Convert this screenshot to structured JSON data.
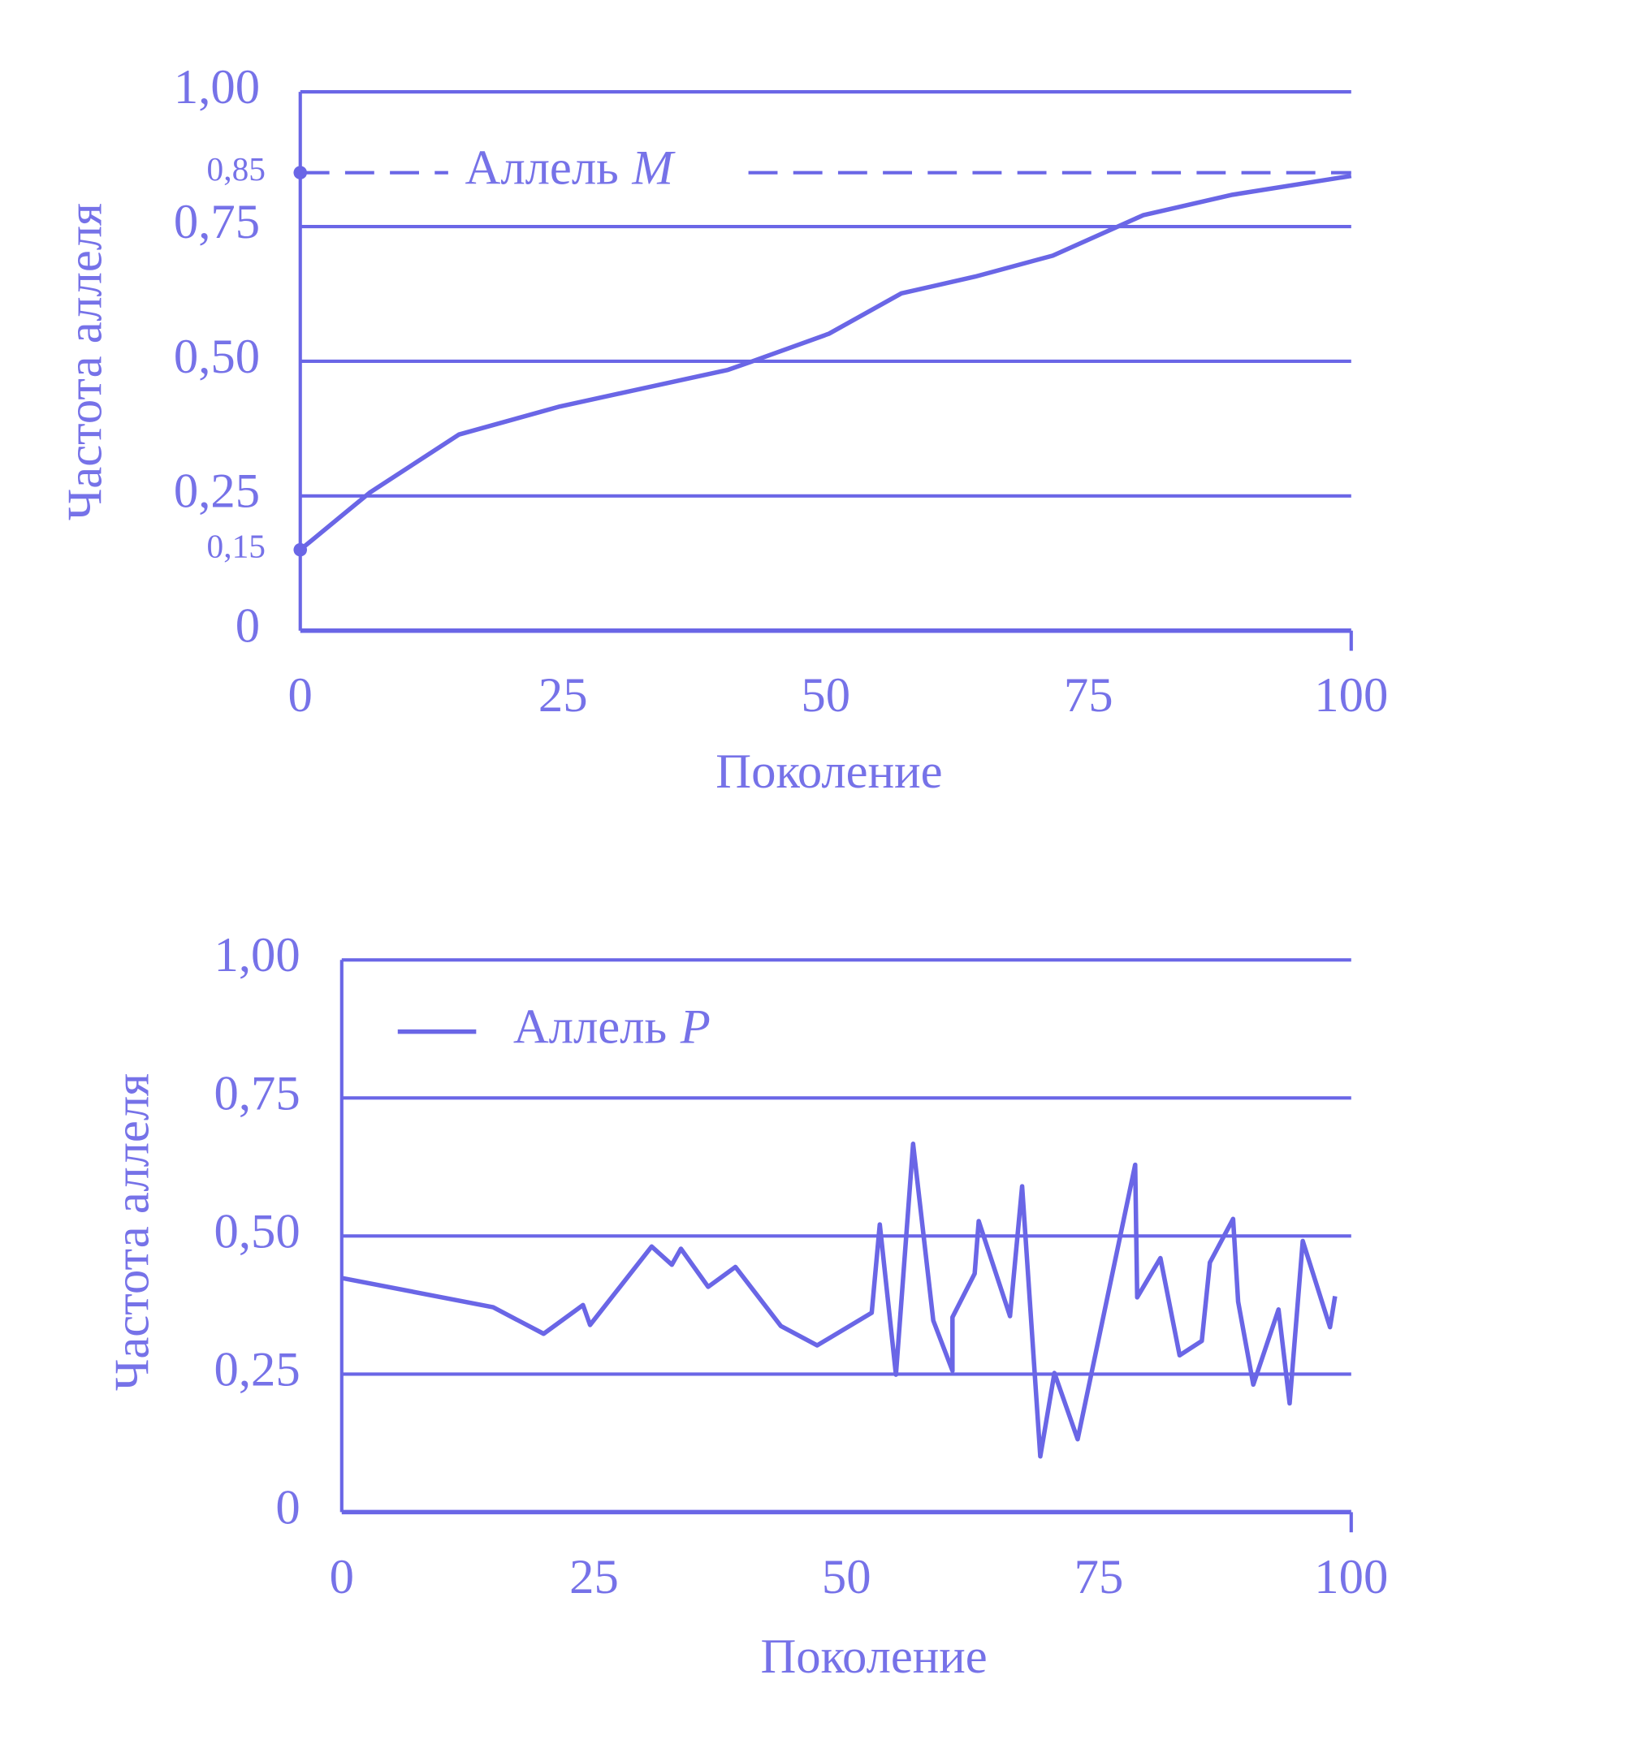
{
  "chart_data": [
    {
      "type": "line",
      "color": "#6a66e6",
      "grid": true,
      "x_label": "Поколение",
      "y_label": "Частота аллеля",
      "xlim": [
        0,
        100
      ],
      "xticks": [
        0,
        25,
        50,
        75,
        100
      ],
      "ylim": [
        0,
        1
      ],
      "yticks": [
        0,
        {
          "value": 0.25,
          "label": "0,25"
        },
        {
          "value": 0.5,
          "label": "0,50"
        },
        {
          "value": 0.75,
          "label": "0,75"
        },
        {
          "value": 1,
          "label": "1,00"
        }
      ],
      "marked_yticks": [
        {
          "value": 0.15,
          "label": "0,15"
        },
        {
          "value": 0.85,
          "label": "0,85"
        }
      ],
      "annotation": {
        "text": "Аллель",
        "symbol": "M",
        "y": 0.85
      },
      "series": [
        {
          "color": "#6a66e6",
          "x": [
            0,
            6.6,
            15.1,
            24.7,
            40.7,
            42.9,
            50.3,
            57.2,
            64.2,
            71.6,
            80.2,
            88.7,
            100
          ],
          "values": [
            0.15,
            0.256,
            0.364,
            0.416,
            0.484,
            0.499,
            0.551,
            0.626,
            0.657,
            0.696,
            0.771,
            0.809,
            0.844
          ]
        }
      ]
    },
    {
      "type": "line",
      "color": "#6a66e6",
      "grid": true,
      "legend": "upper left",
      "x_label": "Поколение",
      "y_label": "Частота аллеля",
      "xlim": [
        0,
        100
      ],
      "xticks": [
        0,
        25,
        50,
        75,
        100
      ],
      "ylim": [
        0,
        1
      ],
      "yticks": [
        0,
        {
          "value": 0.25,
          "label": "0,25"
        },
        {
          "value": 0.5,
          "label": "0,50"
        },
        {
          "value": 0.75,
          "label": "0,75"
        },
        {
          "value": 1,
          "label": "1,00"
        }
      ],
      "series": [
        {
          "name": "Аллель",
          "symbol": "P",
          "color": "#6a66e6",
          "x": [
            0,
            15,
            20,
            23.9,
            24.6,
            30.7,
            32.7,
            33.6,
            36.3,
            39.0,
            43.5,
            47.1,
            52.5,
            53.3,
            54.9,
            56.6,
            58.6,
            60.5,
            60.5,
            62.7,
            63.1,
            66.2,
            67.4,
            69.2,
            70.6,
            72.9,
            78.6,
            78.8,
            81.1,
            83.0,
            85.2,
            86.0,
            88.3,
            88.8,
            90.3,
            92.8,
            93.9,
            95.2,
            97.9,
            98.4
          ],
          "values": [
            0.424,
            0.371,
            0.323,
            0.375,
            0.339,
            0.481,
            0.448,
            0.477,
            0.408,
            0.444,
            0.337,
            0.302,
            0.361,
            0.521,
            0.249,
            0.667,
            0.347,
            0.256,
            0.353,
            0.432,
            0.527,
            0.355,
            0.59,
            0.101,
            0.252,
            0.132,
            0.629,
            0.389,
            0.46,
            0.284,
            0.31,
            0.452,
            0.531,
            0.381,
            0.231,
            0.367,
            0.197,
            0.491,
            0.335,
            0.391
          ]
        }
      ]
    }
  ]
}
